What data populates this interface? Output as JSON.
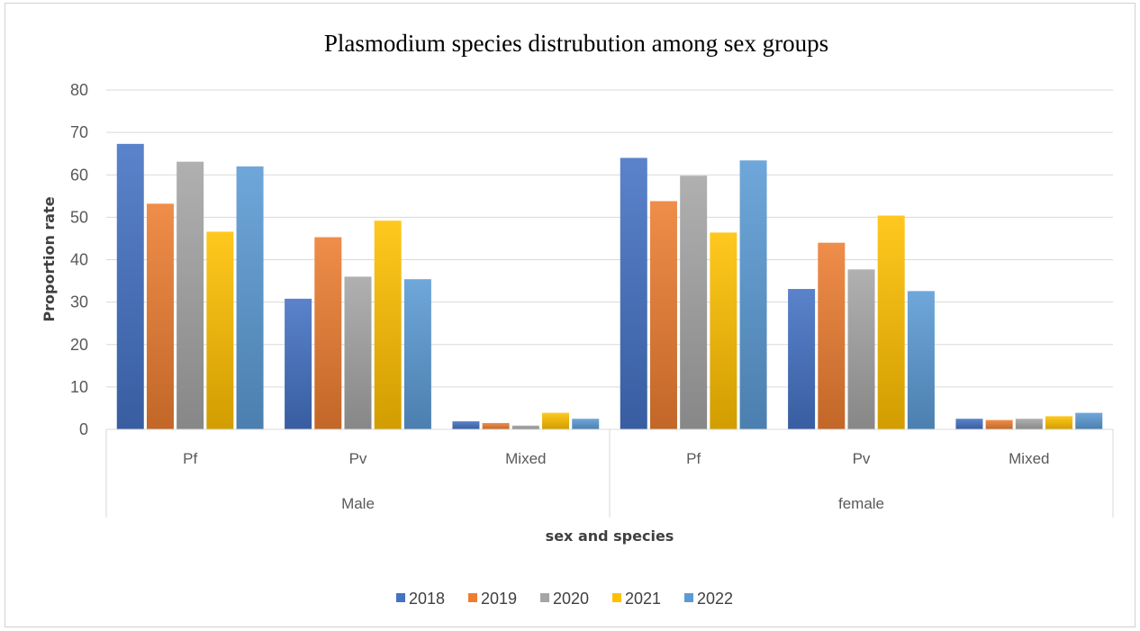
{
  "chart_data": {
    "type": "bar",
    "title": "Plasmodium species distrubution among sex groups",
    "xlabel": "sex and species",
    "ylabel": "Proportion rate",
    "ylim": [
      0,
      80
    ],
    "yticks": [
      "0",
      "10",
      "20",
      "30",
      "40",
      "50",
      "60",
      "70",
      "80"
    ],
    "groups": [
      {
        "label": "Male",
        "categories": [
          "Pf",
          "Pv",
          "Mixed"
        ]
      },
      {
        "label": "female",
        "categories": [
          "Pf",
          "Pv",
          "Mixed"
        ]
      }
    ],
    "series": [
      {
        "name": "2018",
        "color": "#4472C4",
        "values": [
          67.3,
          30.8,
          1.9,
          64.0,
          33.1,
          2.5
        ]
      },
      {
        "name": "2019",
        "color": "#ED7D31",
        "values": [
          53.2,
          45.3,
          1.5,
          53.8,
          44.0,
          2.2
        ]
      },
      {
        "name": "2020",
        "color": "#A5A5A5",
        "values": [
          63.1,
          36.0,
          0.9,
          59.8,
          37.7,
          2.5
        ]
      },
      {
        "name": "2021",
        "color": "#FFC000",
        "values": [
          46.6,
          49.2,
          3.9,
          46.4,
          50.4,
          3.1
        ]
      },
      {
        "name": "2022",
        "color": "#5B9BD5",
        "values": [
          62.0,
          35.4,
          2.5,
          63.4,
          32.6,
          3.9
        ]
      }
    ],
    "grid": true,
    "legend": "bottom"
  }
}
